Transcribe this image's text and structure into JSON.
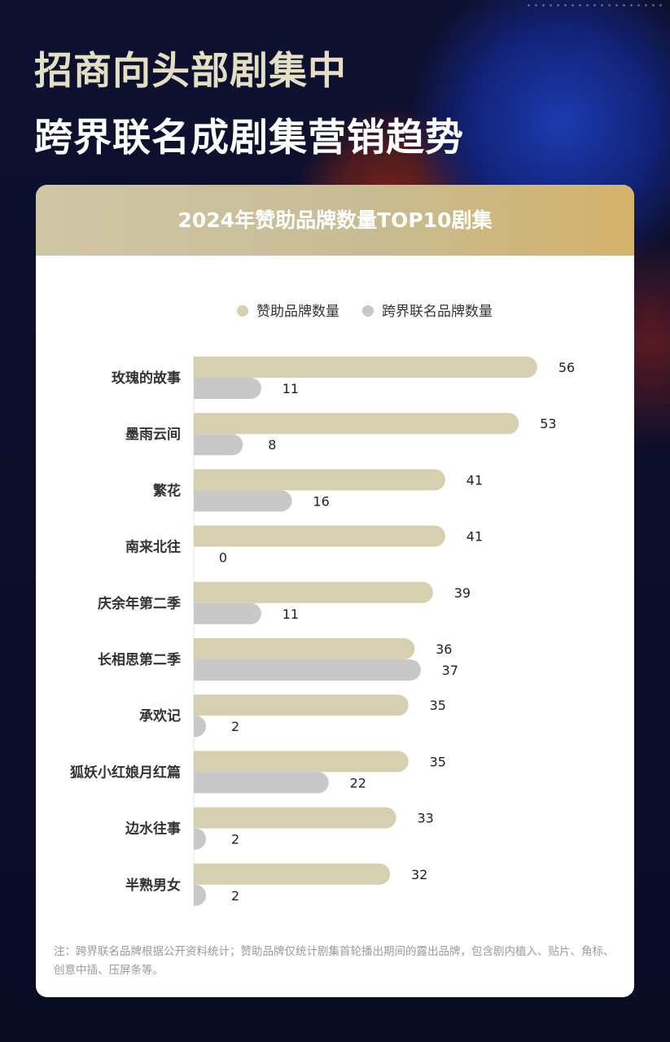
{
  "headline": {
    "line1": "招商向头部剧集中",
    "line2": "跨界联名成剧集营销趋势"
  },
  "colors": {
    "sponsor": "#d6cfb0",
    "crossover": "#c8c8c8",
    "header_gold": "#cfc6a6"
  },
  "chart_data": {
    "type": "bar",
    "orientation": "horizontal",
    "title": "2024年赞助品牌数量TOP10剧集",
    "legend_position": "top-center",
    "grid": false,
    "xlim": [
      0,
      60
    ],
    "categories": [
      "玫瑰的故事",
      "墨雨云间",
      "繁花",
      "南来北往",
      "庆余年第二季",
      "长相思第二季",
      "承欢记",
      "狐妖小红娘月红篇",
      "边水往事",
      "半熟男女"
    ],
    "series": [
      {
        "name": "赞助品牌数量",
        "color": "#d6cfb0",
        "values": [
          56,
          53,
          41,
          41,
          39,
          36,
          35,
          35,
          33,
          32
        ]
      },
      {
        "name": "跨界联名品牌数量",
        "color": "#c8c8c8",
        "values": [
          11,
          8,
          16,
          0,
          11,
          37,
          2,
          22,
          2,
          2
        ]
      }
    ]
  },
  "note": "注：跨界联名品牌根据公开资料统计；赞助品牌仅统计剧集首轮播出期间的露出品牌，包含剧内植入、贴片、角标、创意中插、压屏条等。"
}
